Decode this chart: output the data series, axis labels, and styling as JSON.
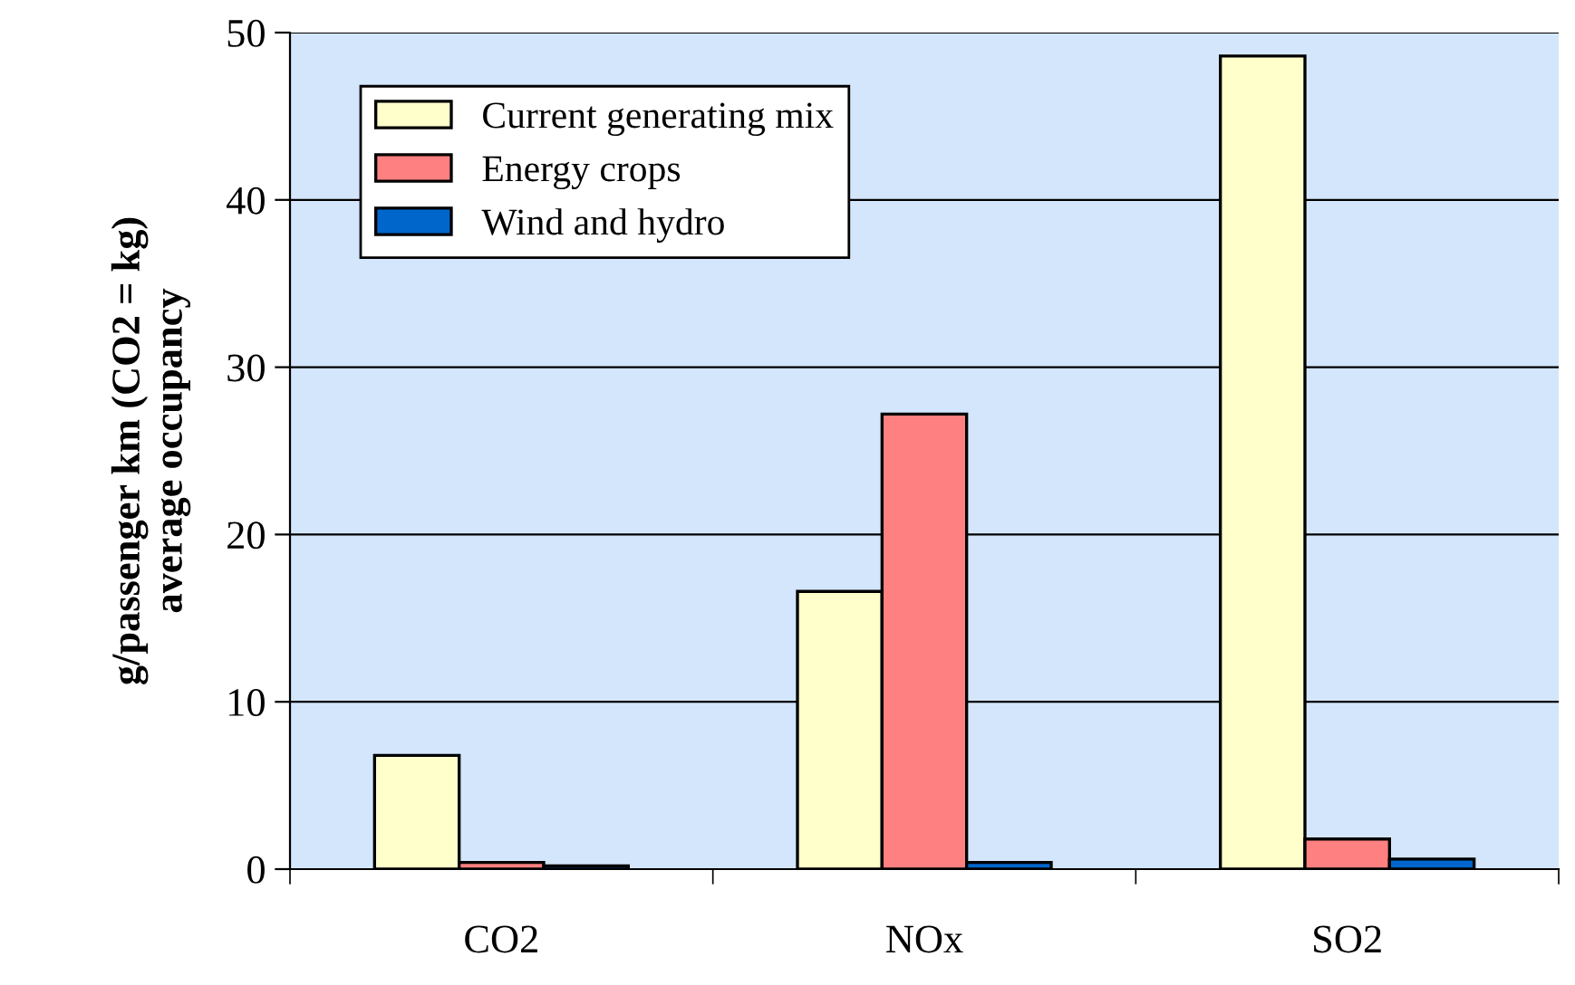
{
  "chart_data": {
    "type": "bar",
    "ylabel": "g/passenger km (CO2 = kg)\naverage occupancy",
    "categories": [
      "CO2",
      "NOx",
      "SO2"
    ],
    "series": [
      {
        "name": "Current generating mix",
        "color": "#ffffcc",
        "values": [
          6.8,
          16.6,
          48.6
        ]
      },
      {
        "name": "Energy crops",
        "color": "#ff8080",
        "values": [
          0.4,
          27.2,
          1.8
        ]
      },
      {
        "name": "Wind and hydro",
        "color": "#0066cc",
        "values": [
          0.2,
          0.4,
          0.6
        ]
      }
    ],
    "ylim": [
      0,
      50
    ],
    "yticks": [
      0,
      10,
      20,
      30,
      40,
      50
    ],
    "grid": "y",
    "legend": "top left"
  }
}
